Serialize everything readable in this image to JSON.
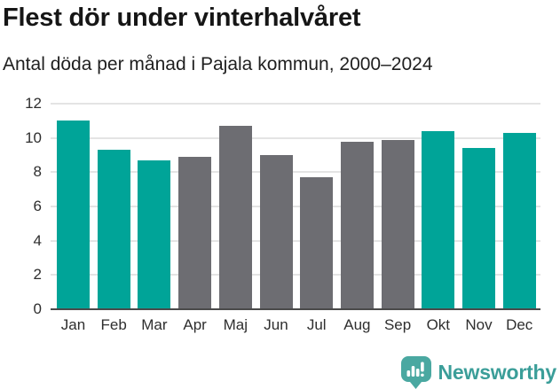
{
  "chart_data": {
    "type": "bar",
    "title": "Flest dör under vinterhalvåret",
    "subtitle": "Antal döda per månad i Pajala kommun, 2000–2024",
    "categories": [
      "Jan",
      "Feb",
      "Mar",
      "Apr",
      "Maj",
      "Jun",
      "Jul",
      "Aug",
      "Sep",
      "Okt",
      "Nov",
      "Dec"
    ],
    "values": [
      11.0,
      9.3,
      8.7,
      8.9,
      10.7,
      9.0,
      7.7,
      9.8,
      9.9,
      10.4,
      9.4,
      10.3
    ],
    "highlighted": [
      true,
      true,
      true,
      false,
      false,
      false,
      false,
      false,
      false,
      true,
      true,
      true
    ],
    "xlabel": "",
    "ylabel": "",
    "ylim": [
      0,
      12
    ],
    "yticks": [
      0,
      2,
      4,
      6,
      8,
      10,
      12
    ],
    "grid": true,
    "legend": false,
    "colors": {
      "highlight": "#00a498",
      "muted": "#6d6d72",
      "grid": "#e4e4e4",
      "axis": "#4a4a4a",
      "tick_text": "#2e2e2e"
    }
  },
  "footer": {
    "brand": "Newsworthy",
    "brand_color": "#3b9e99",
    "logo_color": "#4aa8a1",
    "logo_icon": "speech-bubble-bar-chart"
  }
}
